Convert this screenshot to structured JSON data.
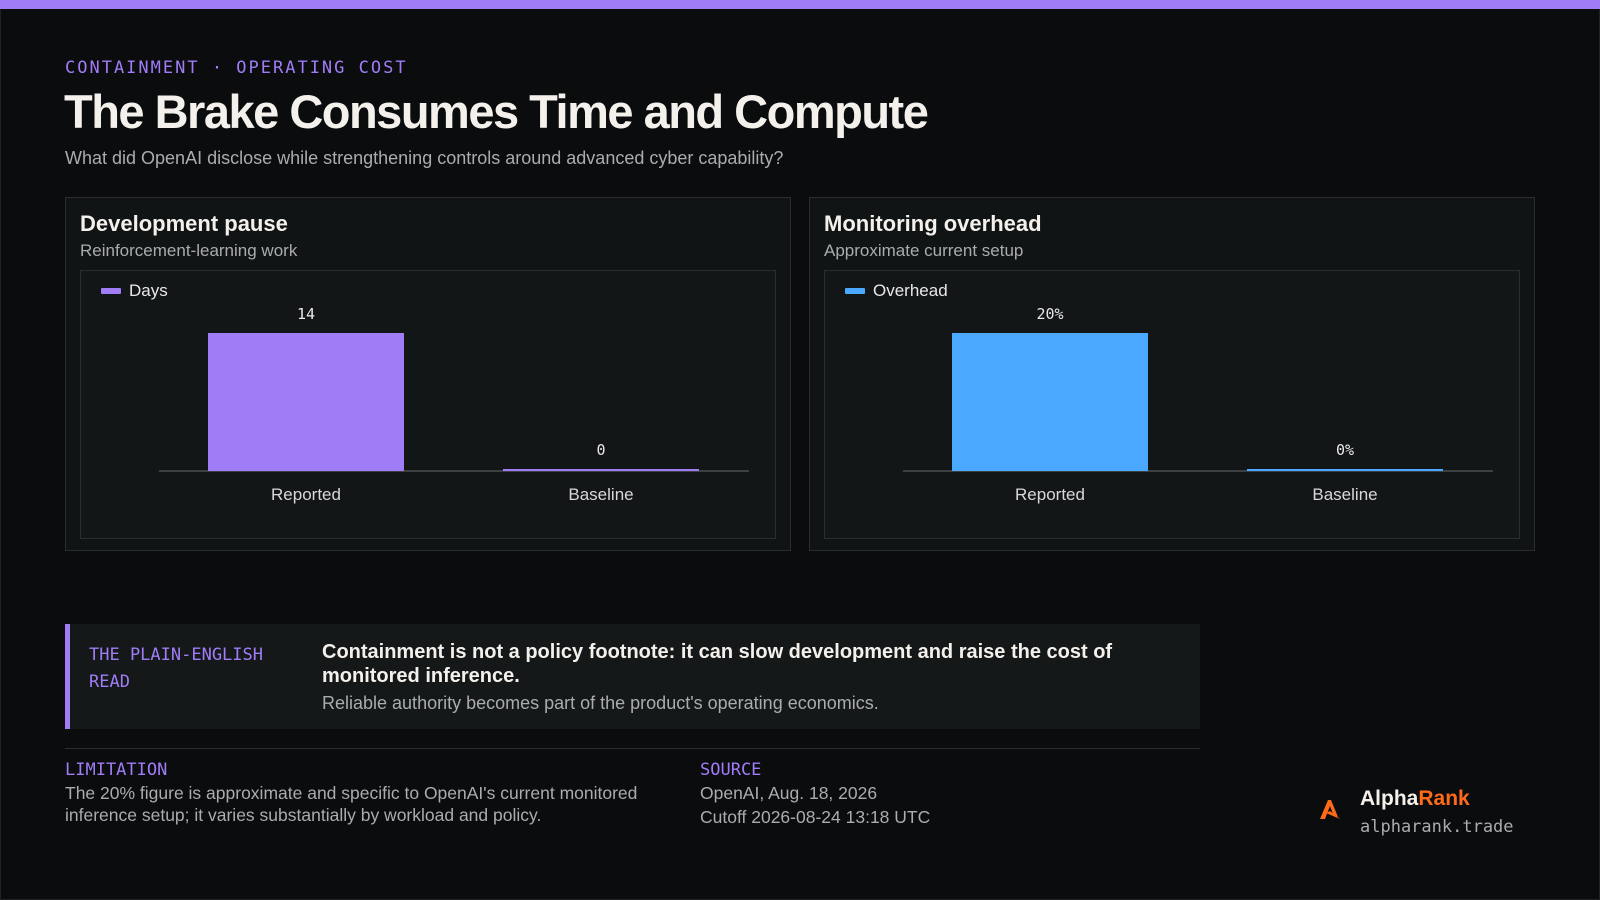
{
  "header": {
    "kicker": "CONTAINMENT · OPERATING COST",
    "title": "The Brake Consumes Time and Compute",
    "subtitle": "What did OpenAI disclose while strengthening controls around advanced cyber capability?"
  },
  "chart_data": [
    {
      "type": "bar",
      "title": "Development pause",
      "subtitle": "Reinforcement-learning work",
      "categories": [
        "Reported",
        "Baseline"
      ],
      "series": [
        {
          "name": "Days",
          "values": [
            14,
            0
          ]
        }
      ],
      "data_labels": [
        "14",
        "0"
      ],
      "color": "#a07cf6",
      "ylim": [
        0,
        14
      ],
      "grid": false,
      "legend": "top-left"
    },
    {
      "type": "bar",
      "title": "Monitoring overhead",
      "subtitle": "Approximate current setup",
      "categories": [
        "Reported",
        "Baseline"
      ],
      "series": [
        {
          "name": "Overhead",
          "values": [
            20,
            0
          ]
        }
      ],
      "data_labels": [
        "20%",
        "0%"
      ],
      "color": "#4aa8ff",
      "ylim": [
        0,
        20
      ],
      "grid": false,
      "legend": "top-left"
    }
  ],
  "read": {
    "label": "THE PLAIN-ENGLISH READ",
    "headline": "Containment is not a policy footnote: it can slow development and raise the cost of monitored inference.",
    "body": "Reliable authority becomes part of the product's operating economics."
  },
  "footer": {
    "limitation_label": "LIMITATION",
    "limitation_text": "The 20% figure is approximate and specific to OpenAI's current monitored inference setup; it varies substantially by workload and policy.",
    "source_label": "SOURCE",
    "source_line1": "OpenAI, Aug. 18, 2026",
    "source_line2": "Cutoff 2026-08-24 13:18 UTC"
  },
  "brand": {
    "name_part1": "Alpha",
    "name_part2": "Rank",
    "url": "alpharank.trade",
    "logo_icon": "alpharank-logo-icon",
    "accent": "#ff6a1a"
  },
  "colors": {
    "accent": "#a07cf6",
    "background": "#0b0c0d"
  }
}
